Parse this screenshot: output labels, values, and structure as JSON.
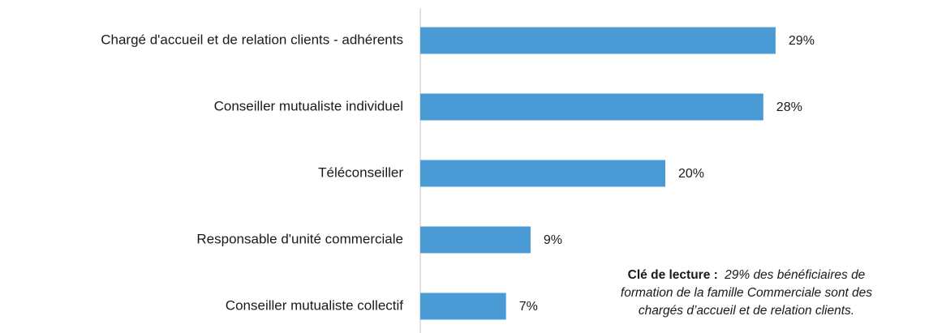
{
  "chart_data": {
    "type": "bar",
    "orientation": "horizontal",
    "categories": [
      "Chargé d'accueil et de relation clients - adhérents",
      "Conseiller mutualiste individuel",
      "Téléconseiller",
      "Responsable d'unité commerciale",
      "Conseiller mutualiste collectif"
    ],
    "values": [
      29,
      28,
      20,
      9,
      7
    ],
    "value_labels": [
      "29%",
      "28%",
      "20%",
      "9%",
      "7%"
    ],
    "color": "#4a9bd5",
    "annotation": {
      "label": "Clé de lecture :",
      "lines": [
        "29% des bénéficiaires de",
        "formation de la famille Commerciale sont des",
        "chargés d’accueil et de relation clients."
      ]
    }
  }
}
